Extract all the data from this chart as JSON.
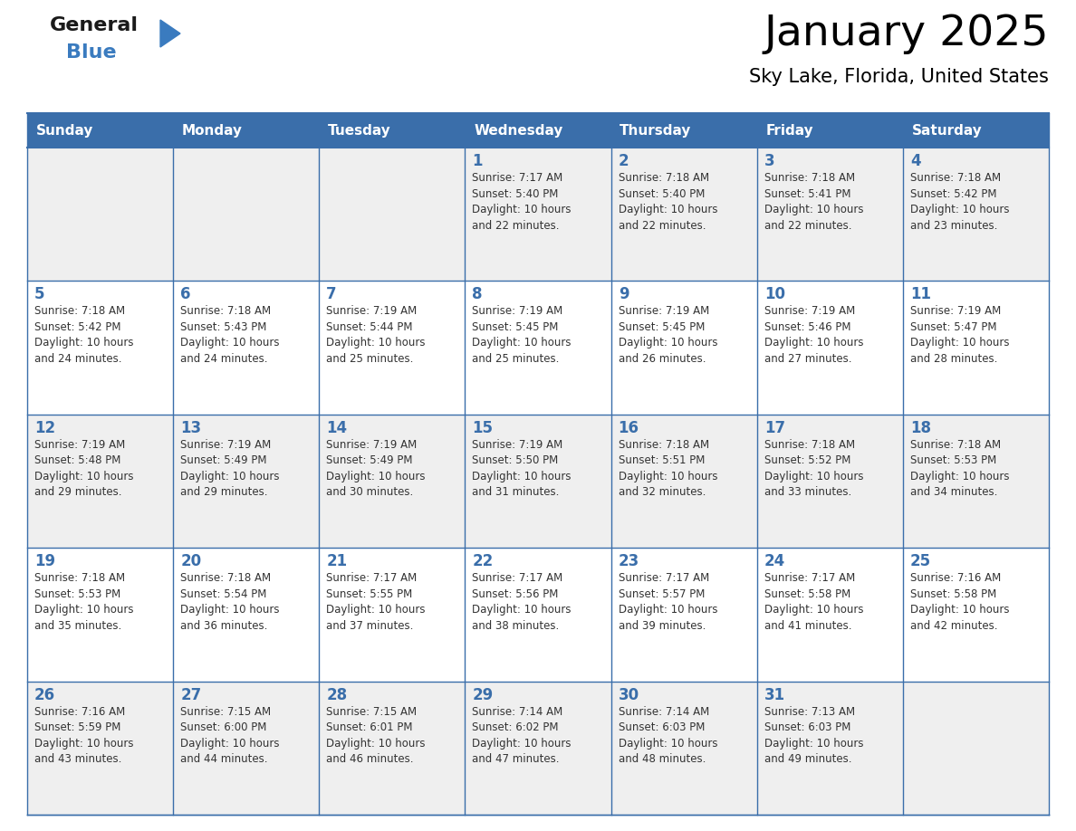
{
  "title": "January 2025",
  "subtitle": "Sky Lake, Florida, United States",
  "header_bg": "#3A6EAA",
  "header_text_color": "#FFFFFF",
  "row_bg_even": "#FFFFFF",
  "row_bg_odd": "#EFEFEF",
  "grid_line_color": "#3A6EAA",
  "day_number_color": "#3A6EAA",
  "text_color": "#333333",
  "days_of_week": [
    "Sunday",
    "Monday",
    "Tuesday",
    "Wednesday",
    "Thursday",
    "Friday",
    "Saturday"
  ],
  "weeks": [
    [
      {
        "day": "",
        "sunrise": "",
        "sunset": "",
        "daylight": ""
      },
      {
        "day": "",
        "sunrise": "",
        "sunset": "",
        "daylight": ""
      },
      {
        "day": "",
        "sunrise": "",
        "sunset": "",
        "daylight": ""
      },
      {
        "day": "1",
        "sunrise": "7:17 AM",
        "sunset": "5:40 PM",
        "daylight": "10 hours and 22 minutes."
      },
      {
        "day": "2",
        "sunrise": "7:18 AM",
        "sunset": "5:40 PM",
        "daylight": "10 hours and 22 minutes."
      },
      {
        "day": "3",
        "sunrise": "7:18 AM",
        "sunset": "5:41 PM",
        "daylight": "10 hours and 22 minutes."
      },
      {
        "day": "4",
        "sunrise": "7:18 AM",
        "sunset": "5:42 PM",
        "daylight": "10 hours and 23 minutes."
      }
    ],
    [
      {
        "day": "5",
        "sunrise": "7:18 AM",
        "sunset": "5:42 PM",
        "daylight": "10 hours and 24 minutes."
      },
      {
        "day": "6",
        "sunrise": "7:18 AM",
        "sunset": "5:43 PM",
        "daylight": "10 hours and 24 minutes."
      },
      {
        "day": "7",
        "sunrise": "7:19 AM",
        "sunset": "5:44 PM",
        "daylight": "10 hours and 25 minutes."
      },
      {
        "day": "8",
        "sunrise": "7:19 AM",
        "sunset": "5:45 PM",
        "daylight": "10 hours and 25 minutes."
      },
      {
        "day": "9",
        "sunrise": "7:19 AM",
        "sunset": "5:45 PM",
        "daylight": "10 hours and 26 minutes."
      },
      {
        "day": "10",
        "sunrise": "7:19 AM",
        "sunset": "5:46 PM",
        "daylight": "10 hours and 27 minutes."
      },
      {
        "day": "11",
        "sunrise": "7:19 AM",
        "sunset": "5:47 PM",
        "daylight": "10 hours and 28 minutes."
      }
    ],
    [
      {
        "day": "12",
        "sunrise": "7:19 AM",
        "sunset": "5:48 PM",
        "daylight": "10 hours and 29 minutes."
      },
      {
        "day": "13",
        "sunrise": "7:19 AM",
        "sunset": "5:49 PM",
        "daylight": "10 hours and 29 minutes."
      },
      {
        "day": "14",
        "sunrise": "7:19 AM",
        "sunset": "5:49 PM",
        "daylight": "10 hours and 30 minutes."
      },
      {
        "day": "15",
        "sunrise": "7:19 AM",
        "sunset": "5:50 PM",
        "daylight": "10 hours and 31 minutes."
      },
      {
        "day": "16",
        "sunrise": "7:18 AM",
        "sunset": "5:51 PM",
        "daylight": "10 hours and 32 minutes."
      },
      {
        "day": "17",
        "sunrise": "7:18 AM",
        "sunset": "5:52 PM",
        "daylight": "10 hours and 33 minutes."
      },
      {
        "day": "18",
        "sunrise": "7:18 AM",
        "sunset": "5:53 PM",
        "daylight": "10 hours and 34 minutes."
      }
    ],
    [
      {
        "day": "19",
        "sunrise": "7:18 AM",
        "sunset": "5:53 PM",
        "daylight": "10 hours and 35 minutes."
      },
      {
        "day": "20",
        "sunrise": "7:18 AM",
        "sunset": "5:54 PM",
        "daylight": "10 hours and 36 minutes."
      },
      {
        "day": "21",
        "sunrise": "7:17 AM",
        "sunset": "5:55 PM",
        "daylight": "10 hours and 37 minutes."
      },
      {
        "day": "22",
        "sunrise": "7:17 AM",
        "sunset": "5:56 PM",
        "daylight": "10 hours and 38 minutes."
      },
      {
        "day": "23",
        "sunrise": "7:17 AM",
        "sunset": "5:57 PM",
        "daylight": "10 hours and 39 minutes."
      },
      {
        "day": "24",
        "sunrise": "7:17 AM",
        "sunset": "5:58 PM",
        "daylight": "10 hours and 41 minutes."
      },
      {
        "day": "25",
        "sunrise": "7:16 AM",
        "sunset": "5:58 PM",
        "daylight": "10 hours and 42 minutes."
      }
    ],
    [
      {
        "day": "26",
        "sunrise": "7:16 AM",
        "sunset": "5:59 PM",
        "daylight": "10 hours and 43 minutes."
      },
      {
        "day": "27",
        "sunrise": "7:15 AM",
        "sunset": "6:00 PM",
        "daylight": "10 hours and 44 minutes."
      },
      {
        "day": "28",
        "sunrise": "7:15 AM",
        "sunset": "6:01 PM",
        "daylight": "10 hours and 46 minutes."
      },
      {
        "day": "29",
        "sunrise": "7:14 AM",
        "sunset": "6:02 PM",
        "daylight": "10 hours and 47 minutes."
      },
      {
        "day": "30",
        "sunrise": "7:14 AM",
        "sunset": "6:03 PM",
        "daylight": "10 hours and 48 minutes."
      },
      {
        "day": "31",
        "sunrise": "7:13 AM",
        "sunset": "6:03 PM",
        "daylight": "10 hours and 49 minutes."
      },
      {
        "day": "",
        "sunrise": "",
        "sunset": "",
        "daylight": ""
      }
    ]
  ],
  "logo_general_color": "#1a1a1a",
  "logo_blue_color": "#3a7bbf",
  "logo_triangle_color": "#3a7bbf",
  "fig_width": 11.88,
  "fig_height": 9.18,
  "dpi": 100
}
